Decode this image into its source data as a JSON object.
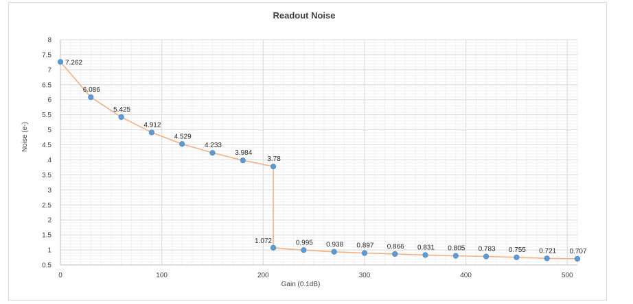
{
  "chart_data": {
    "type": "line",
    "title": "Readout Noise",
    "xlabel": "Gain (0.1dB)",
    "ylabel": "Noise (e-)",
    "xlim": [
      0,
      510
    ],
    "ylim": [
      0.5,
      8
    ],
    "xticks": [
      0,
      100,
      200,
      300,
      400,
      500
    ],
    "yticks": [
      0.5,
      1,
      1.5,
      2,
      2.5,
      3,
      3.5,
      4,
      4.5,
      5,
      5.5,
      6,
      6.5,
      7,
      7.5,
      8
    ],
    "grid": true,
    "legend": "none",
    "line_color": "#f4b183",
    "marker_color": "#5b9bd5",
    "series": [
      {
        "x": [
          0,
          30,
          60,
          90,
          120,
          150,
          180,
          210,
          210,
          240,
          270,
          300,
          330,
          360,
          390,
          420,
          450,
          480,
          510
        ],
        "y": [
          7.262,
          6.086,
          5.425,
          4.912,
          4.529,
          4.233,
          3.984,
          3.78,
          1.072,
          0.995,
          0.938,
          0.897,
          0.866,
          0.831,
          0.805,
          0.783,
          0.755,
          0.721,
          0.707
        ],
        "labels": [
          "7.262",
          "6.086",
          "5.425",
          "4.912",
          "4.529",
          "4.233",
          "3.984",
          "3.78",
          "1.072",
          "0.995",
          "0.938",
          "0.897",
          "0.866",
          "0.831",
          "0.805",
          "0.783",
          "0.755",
          "0.721",
          "0.707"
        ]
      }
    ]
  }
}
